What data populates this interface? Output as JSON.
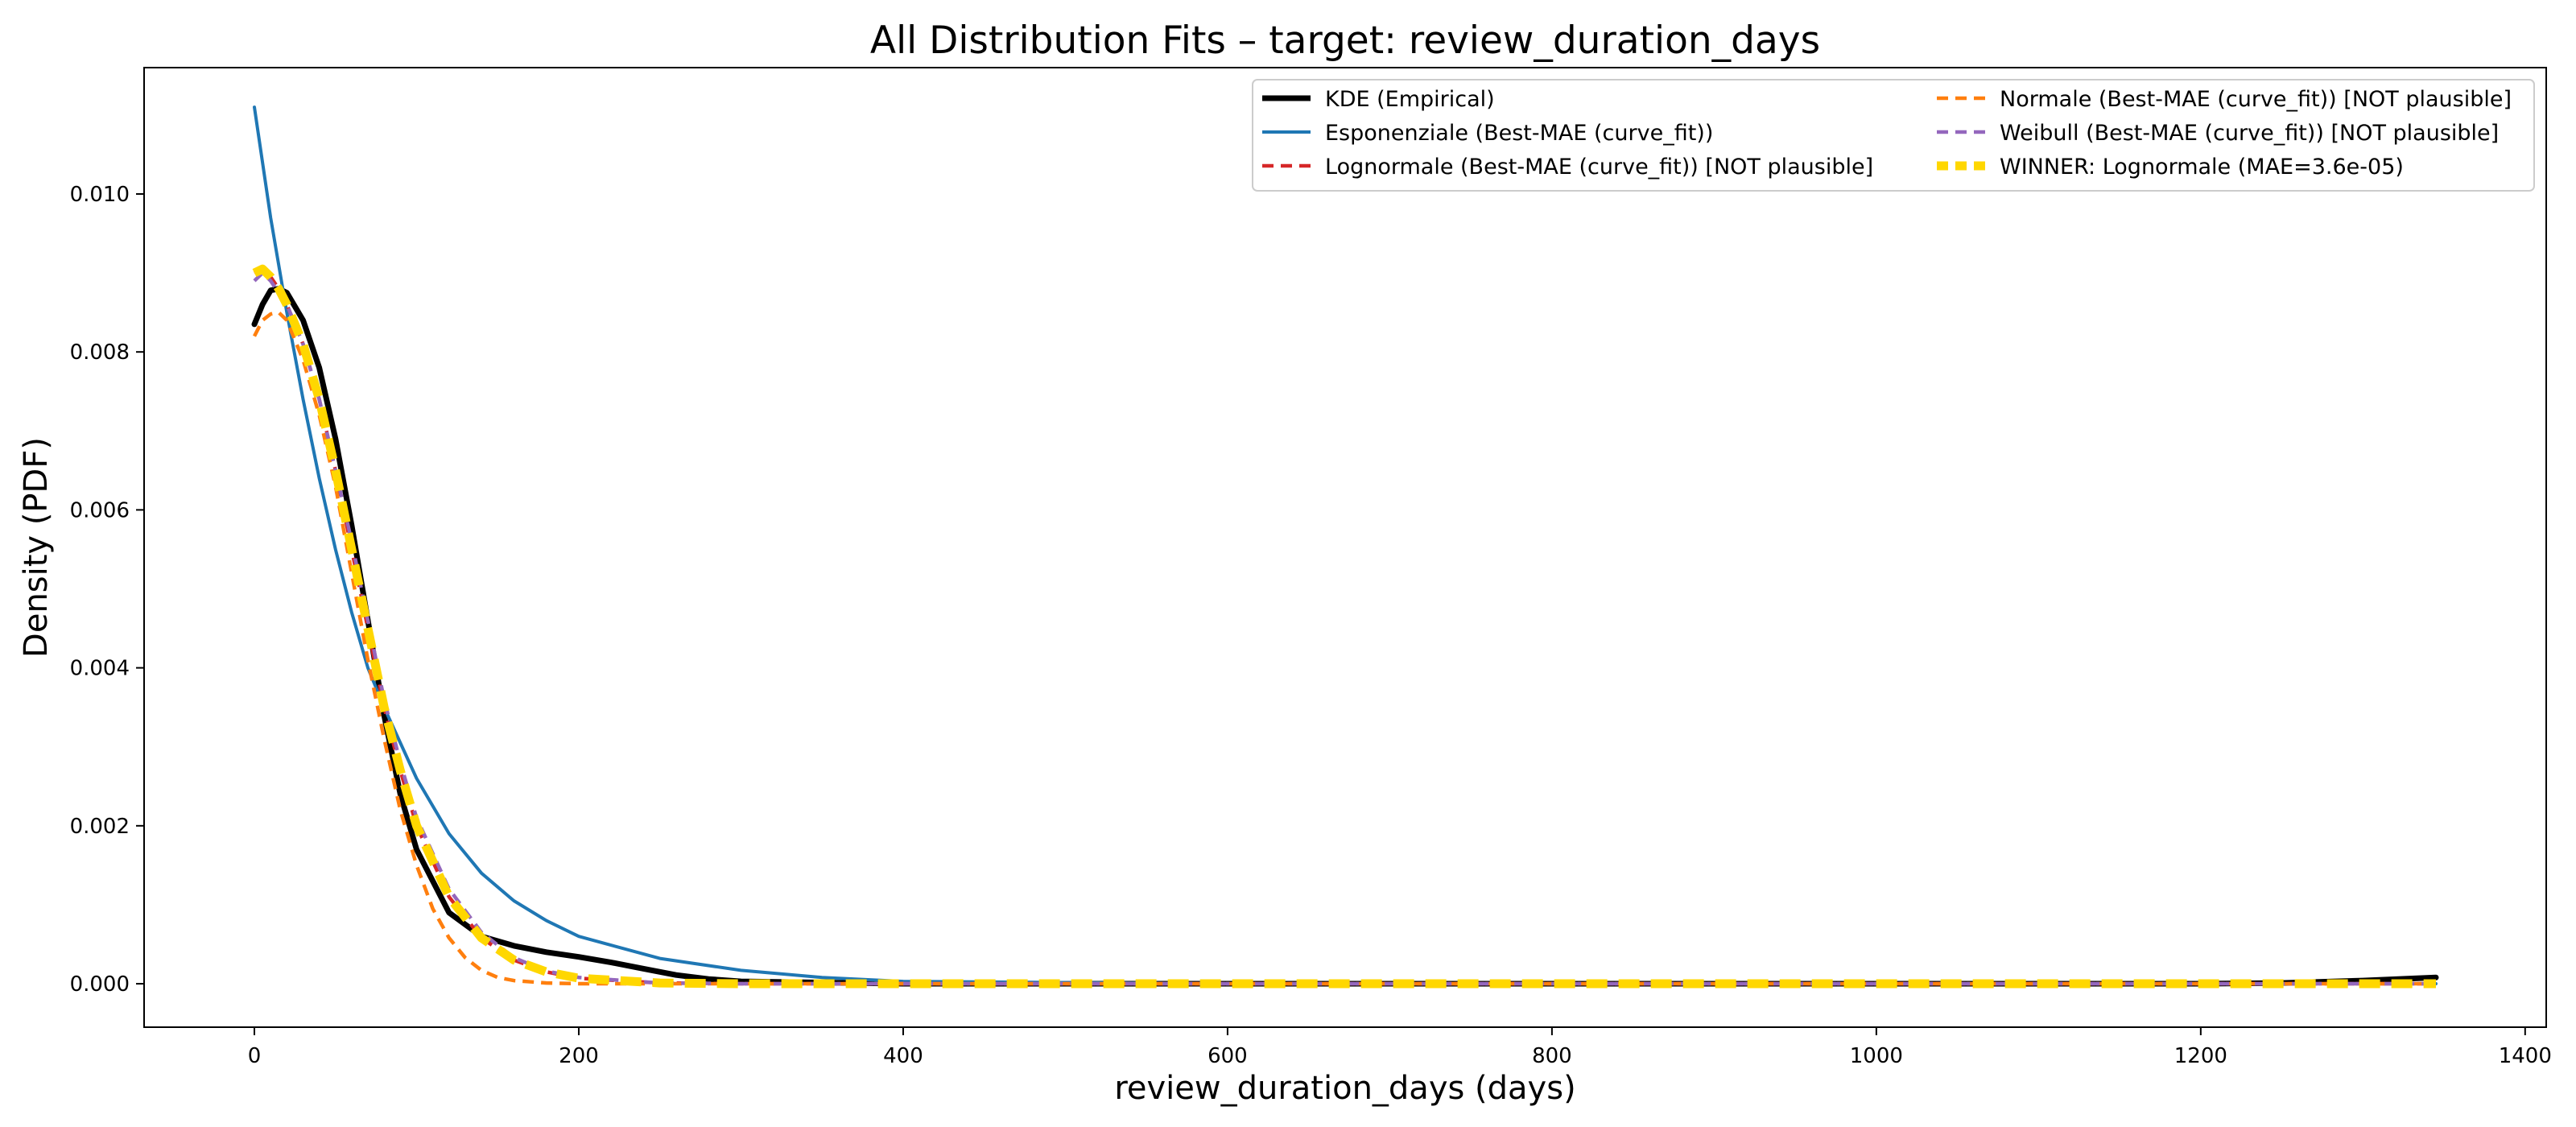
{
  "chart_data": {
    "type": "line",
    "title": "All Distribution Fits – target: review_duration_days",
    "xlabel": "review_duration_days (days)",
    "ylabel": "Density (PDF)",
    "xlim": [
      -68,
      1413
    ],
    "ylim": [
      -0.00055,
      0.0116
    ],
    "xticks": [
      0,
      200,
      400,
      600,
      800,
      1000,
      1200,
      1400
    ],
    "yticks": [
      0.0,
      0.002,
      0.004,
      0.006,
      0.008,
      0.01
    ],
    "xtick_labels": [
      "0",
      "200",
      "400",
      "600",
      "800",
      "1000",
      "1200",
      "1400"
    ],
    "ytick_labels": [
      "0.000",
      "0.002",
      "0.004",
      "0.006",
      "0.008",
      "0.010"
    ],
    "grid": false,
    "legend_position": "top-right",
    "series": [
      {
        "name": "KDE (Empirical)",
        "color": "#000000",
        "style": "solid",
        "x": [
          0,
          5,
          10,
          15,
          20,
          30,
          40,
          50,
          60,
          70,
          80,
          90,
          100,
          120,
          140,
          160,
          180,
          200,
          220,
          240,
          260,
          280,
          300,
          400,
          600,
          800,
          1000,
          1200,
          1250,
          1300,
          1345
        ],
        "y": [
          0.00835,
          0.0086,
          0.00878,
          0.0088,
          0.00875,
          0.0084,
          0.0078,
          0.0069,
          0.0058,
          0.0046,
          0.0034,
          0.0024,
          0.0017,
          0.0009,
          0.0006,
          0.00048,
          0.0004,
          0.00034,
          0.00027,
          0.00019,
          0.00011,
          6e-05,
          3e-05,
          0.0,
          0.0,
          0.0,
          0.0,
          0.0,
          1e-05,
          4e-05,
          8e-05
        ]
      },
      {
        "name": "Esponenziale (Best-MAE (curve_fit))",
        "color": "#1f77b4",
        "style": "solid",
        "x": [
          0,
          10,
          20,
          30,
          40,
          50,
          60,
          70,
          80,
          100,
          120,
          140,
          160,
          180,
          200,
          250,
          300,
          350,
          400,
          600,
          800,
          1000,
          1200,
          1345
        ],
        "y": [
          0.0111,
          0.0097,
          0.0085,
          0.0074,
          0.0064,
          0.0055,
          0.0047,
          0.004,
          0.0035,
          0.0026,
          0.0019,
          0.0014,
          0.00105,
          0.0008,
          0.0006,
          0.00032,
          0.00017,
          8e-05,
          3e-05,
          0.0,
          0.0,
          0.0,
          0.0,
          0.0
        ]
      },
      {
        "name": "Lognormale (Best-MAE (curve_fit)) [NOT plausible]",
        "color": "#d62728",
        "style": "dashed",
        "x": [
          0,
          5,
          10,
          15,
          20,
          30,
          40,
          50,
          60,
          70,
          80,
          90,
          100,
          120,
          140,
          160,
          180,
          200,
          250,
          300,
          400,
          600,
          800,
          1000,
          1200,
          1345
        ],
        "y": [
          0.009,
          0.00905,
          0.00895,
          0.0088,
          0.0086,
          0.0081,
          0.0074,
          0.0065,
          0.0055,
          0.0045,
          0.0035,
          0.0027,
          0.002,
          0.0011,
          0.00058,
          0.0003,
          0.00015,
          7e-05,
          1e-05,
          0.0,
          0.0,
          0.0,
          0.0,
          0.0,
          0.0,
          0.0
        ]
      },
      {
        "name": "Normale (Best-MAE (curve_fit)) [NOT plausible]",
        "color": "#ff7f0e",
        "style": "dashed",
        "x": [
          0,
          5,
          10,
          15,
          20,
          30,
          40,
          50,
          60,
          70,
          80,
          90,
          100,
          110,
          120,
          130,
          140,
          150,
          160,
          180,
          200,
          250,
          300,
          400,
          600,
          800,
          1000,
          1200,
          1345
        ],
        "y": [
          0.0082,
          0.0084,
          0.00848,
          0.0085,
          0.0084,
          0.0079,
          0.0072,
          0.0063,
          0.0052,
          0.0041,
          0.0031,
          0.0022,
          0.0015,
          0.00095,
          0.00058,
          0.00033,
          0.00017,
          8e-05,
          4e-05,
          1e-05,
          0.0,
          0.0,
          0.0,
          0.0,
          0.0,
          0.0,
          0.0,
          0.0,
          0.0
        ]
      },
      {
        "name": "Weibull (Best-MAE (curve_fit)) [NOT plausible]",
        "color": "#9467bd",
        "style": "dashed",
        "x": [
          0,
          5,
          10,
          15,
          20,
          30,
          40,
          50,
          60,
          70,
          80,
          90,
          100,
          120,
          140,
          160,
          180,
          200,
          250,
          300,
          400,
          600,
          800,
          1000,
          1200,
          1345
        ],
        "y": [
          0.0089,
          0.009,
          0.0089,
          0.00875,
          0.0086,
          0.0081,
          0.0074,
          0.0065,
          0.0056,
          0.0046,
          0.0036,
          0.0028,
          0.0021,
          0.0012,
          0.00065,
          0.00033,
          0.00016,
          8e-05,
          1e-05,
          0.0,
          0.0,
          0.0,
          0.0,
          0.0,
          0.0,
          0.0
        ]
      },
      {
        "name": "WINNER: Lognormale (MAE=3.6e-05)",
        "color": "#ffd700",
        "style": "dashed-thick",
        "x": [
          0,
          5,
          10,
          15,
          20,
          30,
          40,
          50,
          60,
          70,
          80,
          90,
          100,
          120,
          140,
          160,
          180,
          200,
          250,
          300,
          400,
          600,
          800,
          1000,
          1200,
          1345
        ],
        "y": [
          0.009,
          0.00905,
          0.00895,
          0.0088,
          0.0086,
          0.0081,
          0.0074,
          0.0065,
          0.0055,
          0.0045,
          0.0035,
          0.0027,
          0.002,
          0.0011,
          0.00058,
          0.0003,
          0.00015,
          7e-05,
          1e-05,
          0.0,
          0.0,
          0.0,
          0.0,
          0.0,
          0.0,
          0.0
        ]
      }
    ]
  }
}
